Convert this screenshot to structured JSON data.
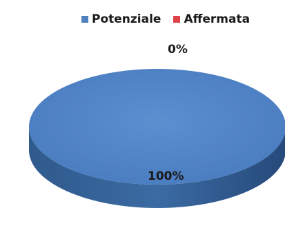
{
  "chart_data": {
    "type": "pie",
    "title": "",
    "categories": [
      "Potenziale",
      "Affermata"
    ],
    "values": [
      100,
      0
    ],
    "data_labels": [
      "100%",
      "0%"
    ],
    "legend": "top",
    "colors": {
      "Potenziale": "#4f81bd",
      "Affermata": "#e0424a"
    },
    "style": "3d"
  }
}
